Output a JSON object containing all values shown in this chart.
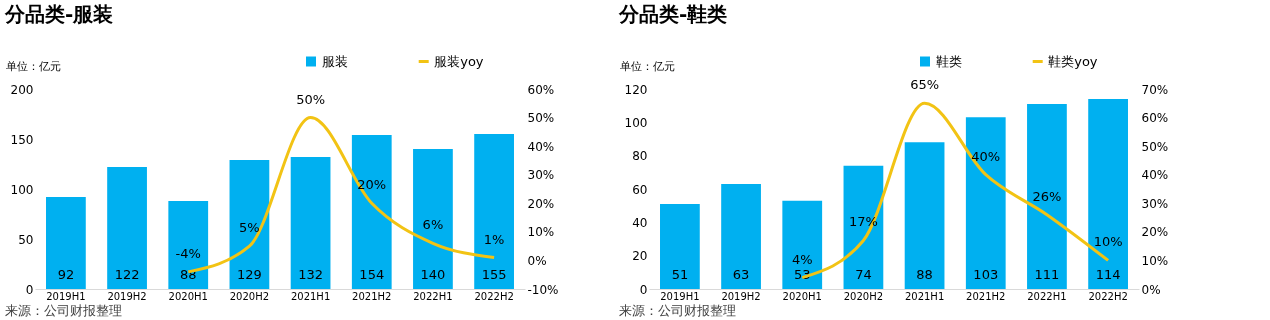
{
  "chart_data": [
    {
      "type": "bar",
      "title": "分品类-服装",
      "ylabel": "单位：亿元",
      "categories": [
        "2019H1",
        "2019H2",
        "2020H1",
        "2020H2",
        "2021H1",
        "2021H2",
        "2022H1",
        "2022H2"
      ],
      "series": [
        {
          "name": "服装",
          "type": "bar",
          "color": "#00b0f0",
          "values": [
            92,
            122,
            88,
            129,
            132,
            154,
            140,
            155
          ]
        },
        {
          "name": "服装yoy",
          "type": "line",
          "axis": "y2",
          "color": "#f2c314",
          "values": [
            null,
            null,
            -4,
            5,
            50,
            20,
            6,
            1
          ],
          "value_labels": [
            null,
            null,
            "-4%",
            "5%",
            "50%",
            "20%",
            "6%",
            "1%"
          ]
        }
      ],
      "data_labels": true,
      "ylim": [
        0,
        200
      ],
      "yticks": [
        0,
        50,
        100,
        150,
        200
      ],
      "y2lim": [
        -10,
        60
      ],
      "y2ticks": [
        {
          "value": -10,
          "label": "-10%"
        },
        {
          "value": 0,
          "label": "0%"
        },
        {
          "value": 10,
          "label": "10%"
        },
        {
          "value": 20,
          "label": "20%"
        },
        {
          "value": 30,
          "label": "30%"
        },
        {
          "value": 40,
          "label": "40%"
        },
        {
          "value": 50,
          "label": "50%"
        },
        {
          "value": 60,
          "label": "60%"
        }
      ],
      "legend": "top",
      "grid": false,
      "annotations": [
        "来源：公司财报整理"
      ]
    },
    {
      "type": "bar",
      "title": "分品类-鞋类",
      "ylabel": "单位：亿元",
      "categories": [
        "2019H1",
        "2019H2",
        "2020H1",
        "2020H2",
        "2021H1",
        "2021H2",
        "2022H1",
        "2022H2"
      ],
      "series": [
        {
          "name": "鞋类",
          "type": "bar",
          "color": "#00b0f0",
          "values": [
            51,
            63,
            53,
            74,
            88,
            103,
            111,
            114
          ]
        },
        {
          "name": "鞋类yoy",
          "type": "line",
          "axis": "y2",
          "color": "#f2c314",
          "values": [
            null,
            null,
            4,
            17,
            65,
            40,
            26,
            10
          ],
          "value_labels": [
            null,
            null,
            "4%",
            "17%",
            "65%",
            "40%",
            "26%",
            "10%"
          ]
        }
      ],
      "data_labels": true,
      "ylim": [
        0,
        120
      ],
      "yticks": [
        0,
        20,
        40,
        60,
        80,
        100,
        120
      ],
      "y2lim": [
        0,
        70
      ],
      "y2ticks": [
        {
          "value": 0,
          "label": "0%"
        },
        {
          "value": 10,
          "label": "10%"
        },
        {
          "value": 20,
          "label": "20%"
        },
        {
          "value": 30,
          "label": "30%"
        },
        {
          "value": 40,
          "label": "40%"
        },
        {
          "value": 50,
          "label": "50%"
        },
        {
          "value": 60,
          "label": "60%"
        },
        {
          "value": 70,
          "label": "70%"
        }
      ],
      "legend": "top",
      "grid": false,
      "annotations": [
        "来源：公司财报整理"
      ]
    }
  ]
}
